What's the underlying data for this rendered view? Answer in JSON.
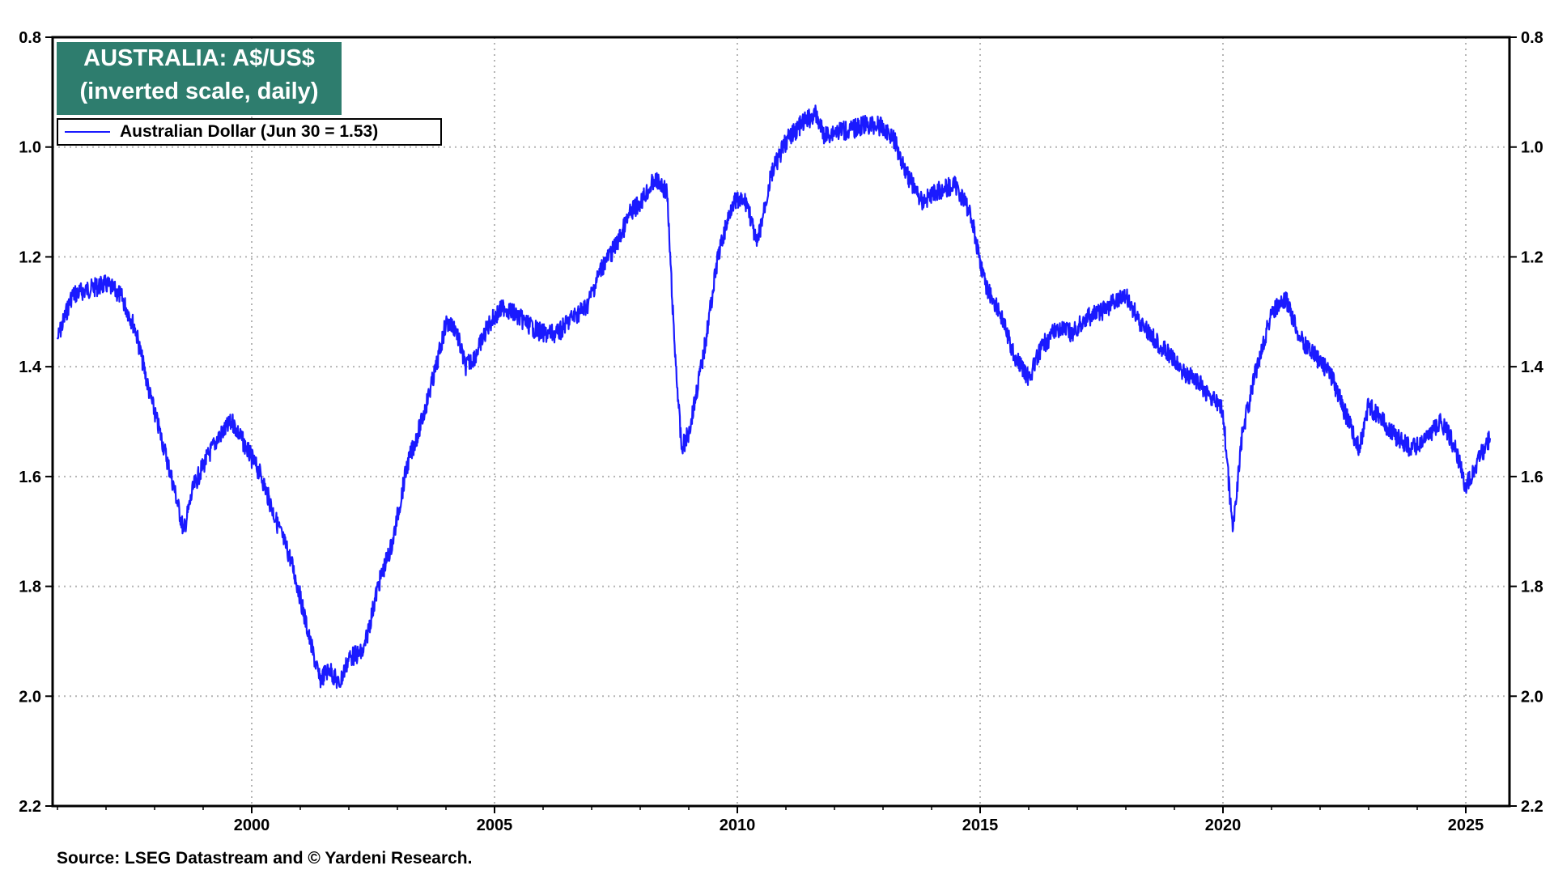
{
  "chart_data": {
    "type": "line",
    "title": "AUSTRALIA: A$/US$",
    "subtitle": "(inverted scale, daily)",
    "ylim": [
      0.8,
      2.2
    ],
    "y_inverted": true,
    "xlim": [
      1995.9,
      2025.9
    ],
    "y_ticks": [
      "0.8",
      "1.0",
      "1.2",
      "1.4",
      "1.6",
      "1.8",
      "2.0",
      "2.2"
    ],
    "x_ticks": [
      "2000",
      "2005",
      "2010",
      "2015",
      "2020",
      "2025"
    ],
    "grid": true,
    "legend_position": "top-left",
    "series": [
      {
        "name": "Australian Dollar (Jun 30 = 1.53)",
        "color": "#1a1aff",
        "x": [
          1996.0,
          1996.3,
          1996.6,
          1997.0,
          1997.3,
          1997.6,
          1997.9,
          1998.2,
          1998.4,
          1998.6,
          1998.8,
          1999.0,
          1999.3,
          1999.6,
          1999.9,
          2000.2,
          2000.5,
          2000.8,
          2001.0,
          2001.2,
          2001.4,
          2001.6,
          2001.8,
          2002.0,
          2002.3,
          2002.6,
          2002.9,
          2003.2,
          2003.5,
          2003.8,
          2004.0,
          2004.2,
          2004.4,
          2004.6,
          2004.9,
          2005.2,
          2005.5,
          2005.8,
          2006.0,
          2006.3,
          2006.6,
          2006.9,
          2007.2,
          2007.5,
          2007.8,
          2008.0,
          2008.3,
          2008.55,
          2008.7,
          2008.85,
          2009.0,
          2009.3,
          2009.6,
          2009.9,
          2010.2,
          2010.4,
          2010.7,
          2011.0,
          2011.3,
          2011.6,
          2011.8,
          2012.0,
          2012.3,
          2012.6,
          2012.9,
          2013.2,
          2013.5,
          2013.8,
          2014.1,
          2014.5,
          2014.8,
          2015.1,
          2015.4,
          2015.7,
          2016.0,
          2016.3,
          2016.6,
          2016.9,
          2017.2,
          2017.5,
          2017.8,
          2018.0,
          2018.3,
          2018.6,
          2018.9,
          2019.2,
          2019.5,
          2019.8,
          2020.0,
          2020.2,
          2020.4,
          2020.7,
          2021.0,
          2021.3,
          2021.6,
          2021.9,
          2022.2,
          2022.5,
          2022.8,
          2023.0,
          2023.3,
          2023.6,
          2023.9,
          2024.2,
          2024.5,
          2024.8,
          2025.0,
          2025.2,
          2025.5
        ],
        "y": [
          1.35,
          1.27,
          1.26,
          1.25,
          1.27,
          1.33,
          1.45,
          1.55,
          1.62,
          1.7,
          1.62,
          1.58,
          1.53,
          1.5,
          1.55,
          1.6,
          1.68,
          1.75,
          1.82,
          1.9,
          1.97,
          1.95,
          1.98,
          1.93,
          1.92,
          1.8,
          1.72,
          1.58,
          1.5,
          1.4,
          1.32,
          1.33,
          1.4,
          1.38,
          1.32,
          1.29,
          1.31,
          1.33,
          1.34,
          1.34,
          1.31,
          1.29,
          1.22,
          1.18,
          1.12,
          1.1,
          1.06,
          1.08,
          1.35,
          1.55,
          1.52,
          1.38,
          1.2,
          1.1,
          1.1,
          1.18,
          1.05,
          0.99,
          0.96,
          0.94,
          0.98,
          0.97,
          0.97,
          0.96,
          0.96,
          0.98,
          1.05,
          1.1,
          1.08,
          1.07,
          1.12,
          1.25,
          1.3,
          1.38,
          1.42,
          1.36,
          1.33,
          1.34,
          1.31,
          1.3,
          1.28,
          1.27,
          1.32,
          1.35,
          1.38,
          1.41,
          1.43,
          1.46,
          1.48,
          1.7,
          1.52,
          1.4,
          1.3,
          1.28,
          1.35,
          1.38,
          1.41,
          1.48,
          1.55,
          1.47,
          1.5,
          1.53,
          1.55,
          1.53,
          1.5,
          1.55,
          1.62,
          1.58,
          1.53
        ]
      }
    ]
  },
  "source": "Source: LSEG Datastream and © Yardeni Research."
}
